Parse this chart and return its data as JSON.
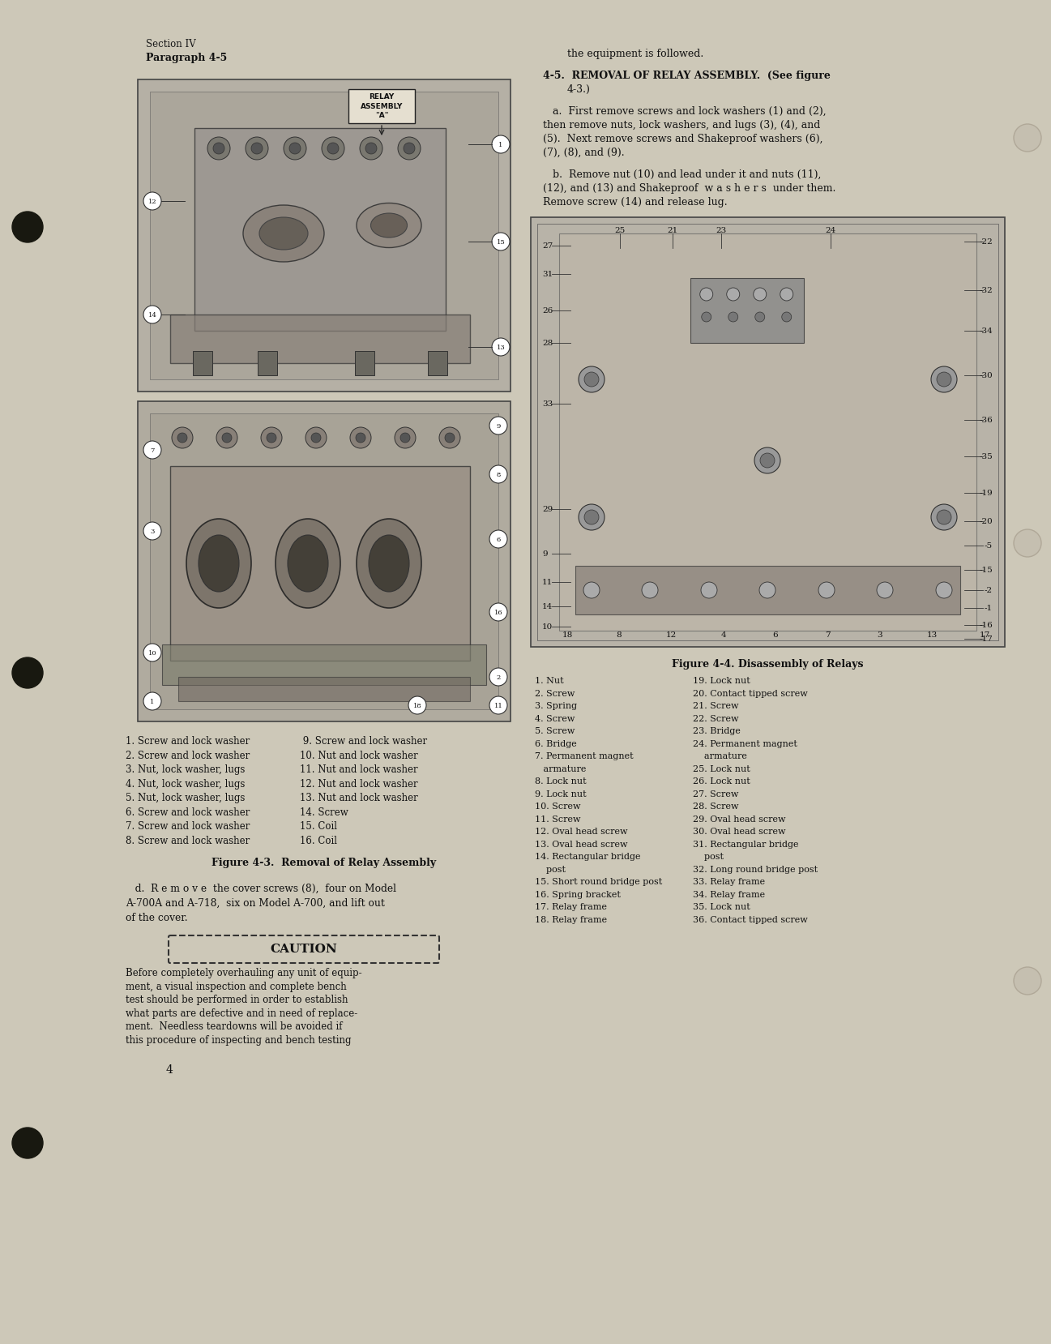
{
  "page_bg_color": "#cdc8b8",
  "header_text_left": "Section IV",
  "header_text_left2": "Paragraph 4-5",
  "page_number": "4",
  "right_col_text": [
    {
      "text": "the equipment is followed.",
      "indent": 30,
      "bold": false,
      "size": 9
    },
    {
      "text": "",
      "indent": 0,
      "bold": false,
      "size": 9
    },
    {
      "text": "4-5.  REMOVAL OF RELAY ASSEMBLY.  (See figure",
      "indent": 0,
      "bold": true,
      "size": 9
    },
    {
      "text": "4-3.)",
      "indent": 30,
      "bold": false,
      "size": 9
    },
    {
      "text": "",
      "indent": 0,
      "bold": false,
      "size": 9
    },
    {
      "text": "   a.  First remove screws and lock washers (1) and (2),",
      "indent": 0,
      "bold": false,
      "size": 9
    },
    {
      "text": "then remove nuts, lock washers, and lugs (3), (4), and",
      "indent": 0,
      "bold": false,
      "size": 9
    },
    {
      "text": "(5).  Next remove screws and Shakeproof washers (6),",
      "indent": 0,
      "bold": false,
      "size": 9
    },
    {
      "text": "(7), (8), and (9).",
      "indent": 0,
      "bold": false,
      "size": 9
    },
    {
      "text": "",
      "indent": 0,
      "bold": false,
      "size": 9
    },
    {
      "text": "   b.  Remove nut (10) and lead under it and nuts (11),",
      "indent": 0,
      "bold": false,
      "size": 9
    },
    {
      "text": "(12), and (13) and Shakeproof  w a s h e r s  under them.",
      "indent": 0,
      "bold": false,
      "size": 9
    },
    {
      "text": "Remove screw (14) and release lug.",
      "indent": 0,
      "bold": false,
      "size": 9
    }
  ],
  "fig43_caption": "Figure 4-3.  Removal of Relay Assembly",
  "fig44_caption": "Figure 4-4. Disassembly of Relays",
  "parts_list_col1": [
    "1. Screw and lock washer",
    "2. Screw and lock washer",
    "3. Nut, lock washer, lugs",
    "4. Nut, lock washer, lugs",
    "5. Nut, lock washer, lugs",
    "6. Screw and lock washer",
    "7. Screw and lock washer",
    "8. Screw and lock washer"
  ],
  "parts_list_col2": [
    " 9. Screw and lock washer",
    "10. Nut and lock washer",
    "11. Nut and lock washer",
    "12. Nut and lock washer",
    "13. Nut and lock washer",
    "14. Screw",
    "15. Coil",
    "16. Coil"
  ],
  "para_d_text": [
    "   d.  R e m o v e  the cover screws (8),  four on Model",
    "A-700A and A-718,  six on Model A-700, and lift out",
    "of the cover."
  ],
  "caution_title": "CAUTION",
  "caution_text": [
    "Before completely overhauling any unit of equip-",
    "ment, a visual inspection and complete bench",
    "test should be performed in order to establish",
    "what parts are defective and in need of replace-",
    "ment.  Needless teardowns will be avoided if",
    "this procedure of inspecting and bench testing"
  ],
  "parts_list2_col1": [
    "1. Nut",
    "2. Screw",
    "3. Spring",
    "4. Screw",
    "5. Screw",
    "6. Bridge",
    "7. Permanent magnet",
    "   armature",
    "8. Lock nut",
    "9. Lock nut",
    "10. Screw",
    "11. Screw",
    "12. Oval head screw",
    "13. Oval head screw",
    "14. Rectangular bridge",
    "    post",
    "15. Short round bridge post",
    "16. Spring bracket",
    "17. Relay frame",
    "18. Relay frame"
  ],
  "parts_list2_col2": [
    "19. Lock nut",
    "20. Contact tipped screw",
    "21. Screw",
    "22. Screw",
    "23. Bridge",
    "24. Permanent magnet",
    "    armature",
    "25. Lock nut",
    "26. Lock nut",
    "27. Screw",
    "28. Screw",
    "29. Oval head screw",
    "30. Oval head screw",
    "31. Rectangular bridge",
    "    post",
    "32. Long round bridge post",
    "33. Relay frame",
    "34. Relay frame",
    "35. Lock nut",
    "36. Contact tipped screw"
  ],
  "relay_label": "RELAY\nASSEMBLY\n\"A\"",
  "fig44_left_labels": [
    "27",
    "31",
    "26",
    "28",
    "33",
    "29",
    "9",
    "11",
    "14",
    "10"
  ],
  "fig44_right_labels": [
    "-22",
    "-32",
    "-34",
    "-30",
    "-36",
    "-35",
    "-19",
    "-20",
    "-5",
    "-15",
    "-2",
    "-1",
    "-16",
    "-17"
  ],
  "fig44_top_labels": [
    "25",
    "21",
    "23",
    "24"
  ],
  "fig44_bottom_labels": [
    "18",
    "8",
    "12",
    "4",
    "6",
    "7",
    "3",
    "13",
    "17"
  ]
}
